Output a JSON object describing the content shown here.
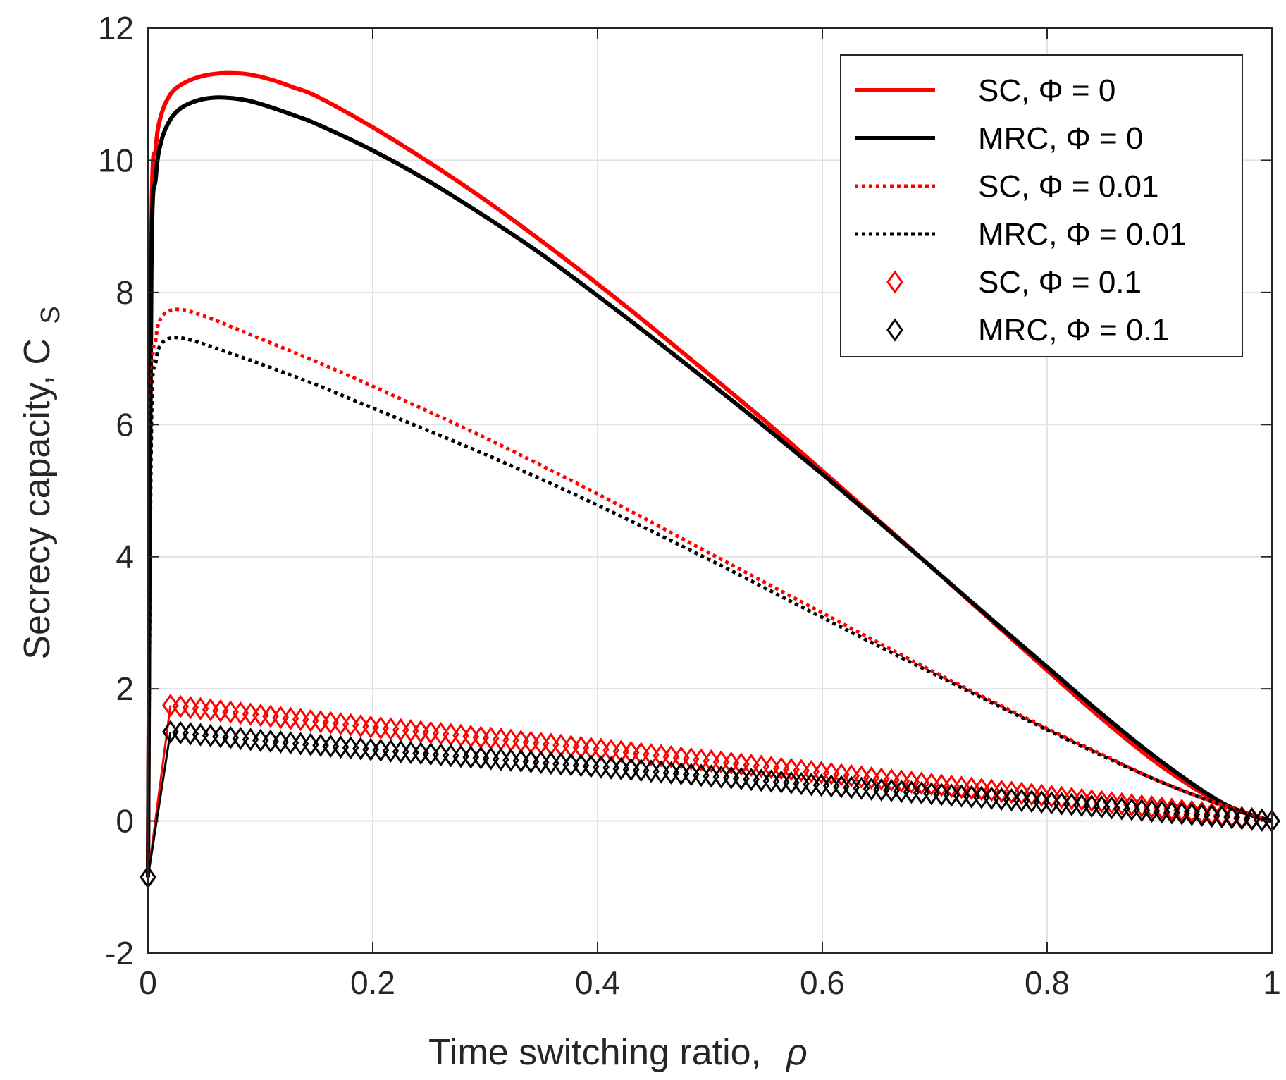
{
  "chart_data": {
    "type": "line",
    "xlabel": "Time switching ratio,",
    "xlabel_symbol": "ρ",
    "ylabel": "Secrecy capacity, C",
    "ylabel_sub": "S",
    "xlim": [
      0,
      1
    ],
    "ylim": [
      -2,
      12
    ],
    "x_ticks": [
      0,
      0.2,
      0.4,
      0.6,
      0.8,
      1
    ],
    "x_tick_labels": [
      "0",
      "0.2",
      "0.4",
      "0.6",
      "0.8",
      "1"
    ],
    "y_ticks": [
      -2,
      0,
      2,
      4,
      6,
      8,
      10,
      12
    ],
    "y_tick_labels": [
      "-2",
      "0",
      "2",
      "4",
      "6",
      "8",
      "10",
      "12"
    ],
    "grid": true,
    "legend_position": "top-right",
    "series": [
      {
        "name": "SC, Φ = 0",
        "color": "#ff0000",
        "style": "solid",
        "x": [
          0,
          0.003,
          0.007,
          0.012,
          0.02,
          0.03,
          0.045,
          0.06,
          0.075,
          0.09,
          0.11,
          0.13,
          0.15,
          0.2,
          0.25,
          0.3,
          0.35,
          0.4,
          0.45,
          0.5,
          0.55,
          0.6,
          0.65,
          0.7,
          0.75,
          0.8,
          0.85,
          0.9,
          0.95,
          0.98,
          1.0
        ],
        "y": [
          -0.85,
          8.8,
          10.2,
          10.7,
          11.0,
          11.15,
          11.26,
          11.31,
          11.32,
          11.3,
          11.22,
          11.1,
          10.97,
          10.5,
          9.97,
          9.4,
          8.78,
          8.13,
          7.45,
          6.75,
          6.04,
          5.3,
          4.55,
          3.8,
          3.04,
          2.28,
          1.53,
          0.85,
          0.3,
          0.1,
          0.0
        ]
      },
      {
        "name": "MRC, Φ = 0",
        "color": "#000000",
        "style": "solid",
        "x": [
          0,
          0.003,
          0.007,
          0.012,
          0.02,
          0.03,
          0.045,
          0.06,
          0.075,
          0.09,
          0.11,
          0.13,
          0.15,
          0.2,
          0.25,
          0.3,
          0.35,
          0.4,
          0.45,
          0.5,
          0.55,
          0.6,
          0.65,
          0.7,
          0.75,
          0.8,
          0.85,
          0.9,
          0.95,
          0.98,
          1.0
        ],
        "y": [
          -0.85,
          8.3,
          9.75,
          10.3,
          10.62,
          10.8,
          10.91,
          10.95,
          10.94,
          10.9,
          10.8,
          10.68,
          10.55,
          10.15,
          9.68,
          9.15,
          8.58,
          7.95,
          7.3,
          6.63,
          5.95,
          5.25,
          4.53,
          3.8,
          3.06,
          2.33,
          1.6,
          0.92,
          0.33,
          0.1,
          0.0
        ]
      },
      {
        "name": "SC, Φ = 0.01",
        "color": "#ff0000",
        "style": "dotted",
        "x": [
          0,
          0.003,
          0.007,
          0.012,
          0.02,
          0.03,
          0.04,
          0.06,
          0.08,
          0.1,
          0.15,
          0.2,
          0.3,
          0.4,
          0.5,
          0.6,
          0.7,
          0.8,
          0.85,
          0.9,
          0.95,
          1.0
        ],
        "y": [
          -0.85,
          6.2,
          7.3,
          7.62,
          7.73,
          7.74,
          7.7,
          7.58,
          7.44,
          7.3,
          6.95,
          6.58,
          5.8,
          4.95,
          4.05,
          3.15,
          2.25,
          1.4,
          1.0,
          0.6,
          0.28,
          0.0
        ]
      },
      {
        "name": "MRC, Φ = 0.01",
        "color": "#000000",
        "style": "dotted",
        "x": [
          0,
          0.003,
          0.007,
          0.012,
          0.02,
          0.03,
          0.04,
          0.06,
          0.08,
          0.1,
          0.15,
          0.2,
          0.3,
          0.4,
          0.5,
          0.6,
          0.7,
          0.8,
          0.85,
          0.9,
          0.95,
          1.0
        ],
        "y": [
          -0.85,
          5.9,
          6.95,
          7.22,
          7.31,
          7.31,
          7.27,
          7.16,
          7.04,
          6.92,
          6.6,
          6.25,
          5.55,
          4.78,
          3.95,
          3.08,
          2.22,
          1.38,
          0.98,
          0.6,
          0.27,
          0.0
        ]
      },
      {
        "name": "SC, Φ = 0.1",
        "color": "#ff0000",
        "style": "diamond",
        "x": [
          0,
          0.02,
          0.1,
          0.2,
          0.3,
          0.4,
          0.5,
          0.6,
          0.7,
          0.8,
          0.9,
          1.0
        ],
        "y": [
          -0.85,
          1.75,
          1.6,
          1.42,
          1.26,
          1.09,
          0.91,
          0.73,
          0.55,
          0.38,
          0.2,
          0.0
        ]
      },
      {
        "name": "MRC, Φ = 0.1",
        "color": "#000000",
        "style": "diamond",
        "x": [
          0,
          0.02,
          0.1,
          0.2,
          0.3,
          0.4,
          0.5,
          0.6,
          0.7,
          0.8,
          0.9,
          1.0
        ],
        "y": [
          -0.85,
          1.35,
          1.22,
          1.08,
          0.95,
          0.82,
          0.68,
          0.54,
          0.41,
          0.28,
          0.14,
          0.0
        ]
      }
    ]
  }
}
